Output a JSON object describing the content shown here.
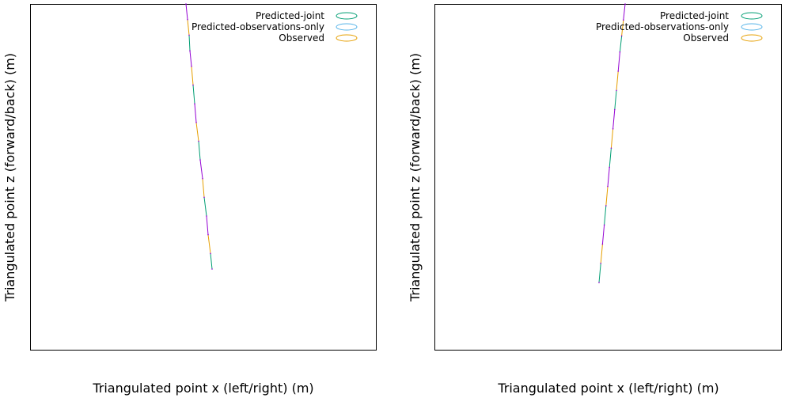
{
  "chart_data": [
    {
      "type": "scatter",
      "xlabel": "Triangulated point x (left/right) (m)",
      "ylabel": "Triangulated point z (forward/back) (m)",
      "ticks_shown": false,
      "grid": false,
      "legend_placement": "top-right",
      "legend": [
        {
          "label": "Predicted-joint",
          "color": "#009e73",
          "marker": "ellipse"
        },
        {
          "label": "Predicted-observations-only",
          "color": "#56b4e9",
          "marker": "ellipse"
        },
        {
          "label": "Observed",
          "color": "#e69f00",
          "marker": "ellipse"
        }
      ],
      "points_color": "#9400d3",
      "x": [
        0.0,
        0.02,
        0.04,
        0.05,
        0.07,
        0.09,
        0.11,
        0.13,
        0.16,
        0.18,
        0.21,
        0.23,
        0.26,
        0.28,
        0.31,
        0.33
      ],
      "y": [
        1.0,
        0.95,
        0.9,
        0.85,
        0.8,
        0.74,
        0.68,
        0.62,
        0.56,
        0.5,
        0.44,
        0.38,
        0.32,
        0.26,
        0.2,
        0.15
      ]
    },
    {
      "type": "scatter",
      "xlabel": "Triangulated point x (left/right) (m)",
      "ylabel": "Triangulated point z (forward/back) (m)",
      "ticks_shown": false,
      "grid": false,
      "legend_placement": "top-right",
      "legend": [
        {
          "label": "Predicted-joint",
          "color": "#009e73",
          "marker": "ellipse"
        },
        {
          "label": "Predicted-observations-only",
          "color": "#56b4e9",
          "marker": "ellipse"
        },
        {
          "label": "Observed",
          "color": "#e69f00",
          "marker": "ellipse"
        }
      ],
      "points_color": "#9400d3",
      "x": [
        0.0,
        -0.02,
        -0.04,
        -0.06,
        -0.08,
        -0.1,
        -0.12,
        -0.14,
        -0.16,
        -0.18,
        -0.2,
        -0.22,
        -0.24,
        -0.26,
        -0.28,
        -0.3
      ],
      "y": [
        1.0,
        0.95,
        0.9,
        0.85,
        0.79,
        0.73,
        0.67,
        0.61,
        0.55,
        0.49,
        0.43,
        0.37,
        0.31,
        0.25,
        0.19,
        0.13
      ]
    }
  ]
}
